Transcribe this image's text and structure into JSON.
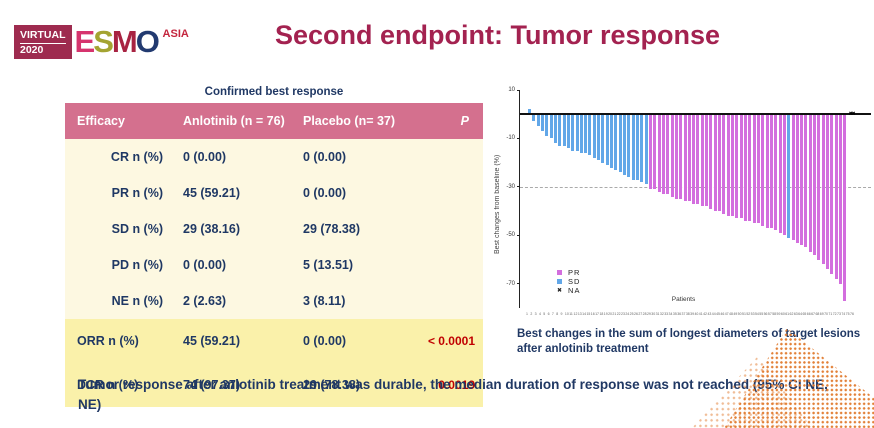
{
  "logo": {
    "virtual": "VIRTUAL",
    "year": "2020",
    "letters": [
      {
        "char": "E",
        "color": "#d6346e"
      },
      {
        "char": "S",
        "color": "#a4a432"
      },
      {
        "char": "M",
        "color": "#a82342"
      },
      {
        "char": "O",
        "color": "#223a70"
      }
    ],
    "asia": "ASIA",
    "asia_color": "#c4263e",
    "box_color": "#9e2b4f"
  },
  "title": "Second endpoint: Tumor response",
  "table": {
    "caption": "Confirmed best response",
    "headers": [
      "Efficacy",
      "Anlotinib (n = 76)",
      "Placebo (n= 37)",
      "P"
    ],
    "rows": [
      {
        "label": "CR n (%)",
        "anlotinib": "0 (0.00)",
        "placebo": "0 (0.00)",
        "p": ""
      },
      {
        "label": "PR n (%)",
        "anlotinib": "45 (59.21)",
        "placebo": "0 (0.00)",
        "p": ""
      },
      {
        "label": "SD n (%)",
        "anlotinib": "29 (38.16)",
        "placebo": "29 (78.38)",
        "p": ""
      },
      {
        "label": "PD n (%)",
        "anlotinib": "0 (0.00)",
        "placebo": "5 (13.51)",
        "p": ""
      },
      {
        "label": "NE n (%)",
        "anlotinib": "2 (2.63)",
        "placebo": "3 (8.11)",
        "p": ""
      }
    ],
    "summary_rows": [
      {
        "label": "ORR n (%)",
        "anlotinib": "45 (59.21)",
        "placebo": "0 (0.00)",
        "p": "< 0.0001"
      },
      {
        "label": "DCR n (%)",
        "anlotinib": "74 (97.37)",
        "placebo": "29 (78.38)",
        "p": "0.0019"
      }
    ],
    "header_bg": "#d4708e",
    "body_bg": "#fdf8e1",
    "summary_bg": "#faf1aa",
    "text_color": "#1f3864",
    "p_color": "#c00000"
  },
  "chart_data": {
    "type": "bar",
    "subtype": "waterfall",
    "xlabel": "Patients",
    "ylabel": "Best changes from baseline (%)",
    "ylim": [
      -80,
      10
    ],
    "yticks": [
      10,
      -10,
      -30,
      -50,
      -70
    ],
    "reference_line": -30,
    "grid": false,
    "legend_position": "bottom-left",
    "legend": [
      {
        "label": "PR",
        "color": "#d36ede"
      },
      {
        "label": "SD",
        "color": "#62a7e8"
      },
      {
        "label": "NA",
        "color": "#111111",
        "marker": "x"
      }
    ],
    "n_patients": 76,
    "na_count": 2,
    "na_value": 0,
    "values": [
      2,
      -3,
      -5,
      -7,
      -9,
      -10,
      -12,
      -13,
      -13,
      -14,
      -15,
      -15,
      -16,
      -16,
      -17,
      -18,
      -19,
      -20,
      -21,
      -22,
      -23,
      -24,
      -25,
      -26,
      -27,
      -27,
      -28,
      -29,
      -31,
      -31,
      -32,
      -33,
      -33,
      -34,
      -35,
      -35,
      -36,
      -36,
      -37,
      -37,
      -38,
      -38,
      -39,
      -40,
      -40,
      -41,
      -42,
      -42,
      -43,
      -43,
      -44,
      -44,
      -45,
      -45,
      -46,
      -47,
      -47,
      -48,
      -49,
      -50,
      -51,
      -52,
      -53,
      -54,
      -55,
      -57,
      -58,
      -60,
      -62,
      -64,
      -66,
      -68,
      -70,
      -77
    ],
    "segments": [
      {
        "group": "SD",
        "count": 28
      },
      {
        "group": "PR",
        "count": 32
      },
      {
        "group": "SD",
        "count": 1
      },
      {
        "group": "PR",
        "count": 13
      }
    ]
  },
  "chart_caption": "Best changes in the sum of longest diameters of target lesions after anlotinib treatment",
  "footer": "Tumor response after anlotinib treatment was durable, the median duration of  response was not reached (95% CI NE, NE)",
  "accent_title_color": "#a32250"
}
